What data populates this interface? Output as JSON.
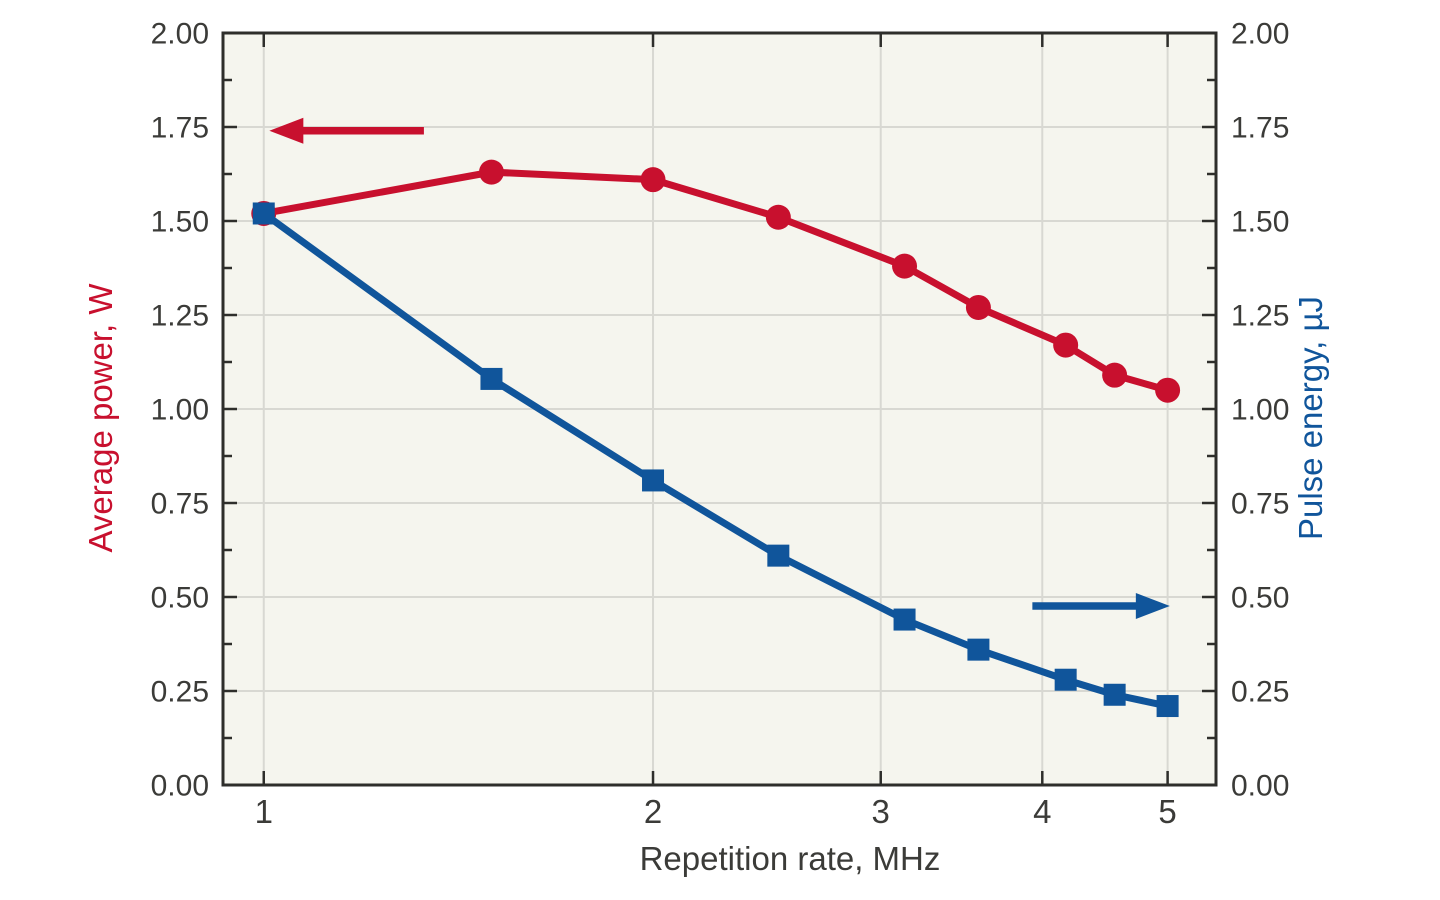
{
  "chart_data": {
    "type": "line",
    "title": "",
    "x_axis": {
      "label": "Repetition rate, MHz",
      "scale": "log",
      "range": [
        0.93,
        5.45
      ],
      "ticks": [
        1,
        2,
        3,
        4,
        5
      ]
    },
    "y_axis_left": {
      "label": "Average power, W",
      "color": "#c8102e",
      "range": [
        0.0,
        2.0
      ],
      "major_step": 0.25,
      "minor_step": 0.125,
      "tick_labels": [
        "0.00",
        "0.25",
        "0.50",
        "0.75",
        "1.00",
        "1.25",
        "1.50",
        "1.75",
        "2.00"
      ]
    },
    "y_axis_right": {
      "label": "Pulse energy, µJ",
      "color": "#10559b",
      "range": [
        0.0,
        2.0
      ],
      "major_step": 0.25,
      "minor_step": 0.125,
      "tick_labels": [
        "0.00",
        "0.25",
        "0.50",
        "0.75",
        "1.00",
        "1.25",
        "1.50",
        "1.75",
        "2.00"
      ]
    },
    "grid": true,
    "legend": "none",
    "series": [
      {
        "name": "Average power",
        "axis": "left",
        "color": "#c8102e",
        "marker": "circle",
        "x": [
          1.0,
          1.5,
          2.0,
          2.5,
          3.13,
          3.57,
          4.17,
          4.55,
          5.0
        ],
        "y": [
          1.52,
          1.63,
          1.61,
          1.51,
          1.38,
          1.27,
          1.17,
          1.09,
          1.05
        ]
      },
      {
        "name": "Pulse energy",
        "axis": "right",
        "color": "#10559b",
        "marker": "square",
        "x": [
          1.0,
          1.5,
          2.0,
          2.5,
          3.13,
          3.57,
          4.17,
          4.55,
          5.0
        ],
        "y": [
          1.52,
          1.08,
          0.81,
          0.61,
          0.44,
          0.36,
          0.28,
          0.24,
          0.21
        ]
      }
    ],
    "annotations": [
      {
        "type": "arrow",
        "refers_to": "left-axis-series",
        "color": "#c8102e",
        "y": 1.74,
        "x_from": 1.33,
        "x_to": 1.01,
        "points": "left"
      },
      {
        "type": "arrow",
        "refers_to": "right-axis-series",
        "color": "#10559b",
        "y": 0.476,
        "x_from": 3.93,
        "x_to": 5.02,
        "points": "right"
      }
    ],
    "style": {
      "plot_bg": "#f5f5ee",
      "grid_color": "#d8d8d2",
      "frame_color": "#2e2e2b",
      "text_color": "#3b3b38"
    }
  }
}
